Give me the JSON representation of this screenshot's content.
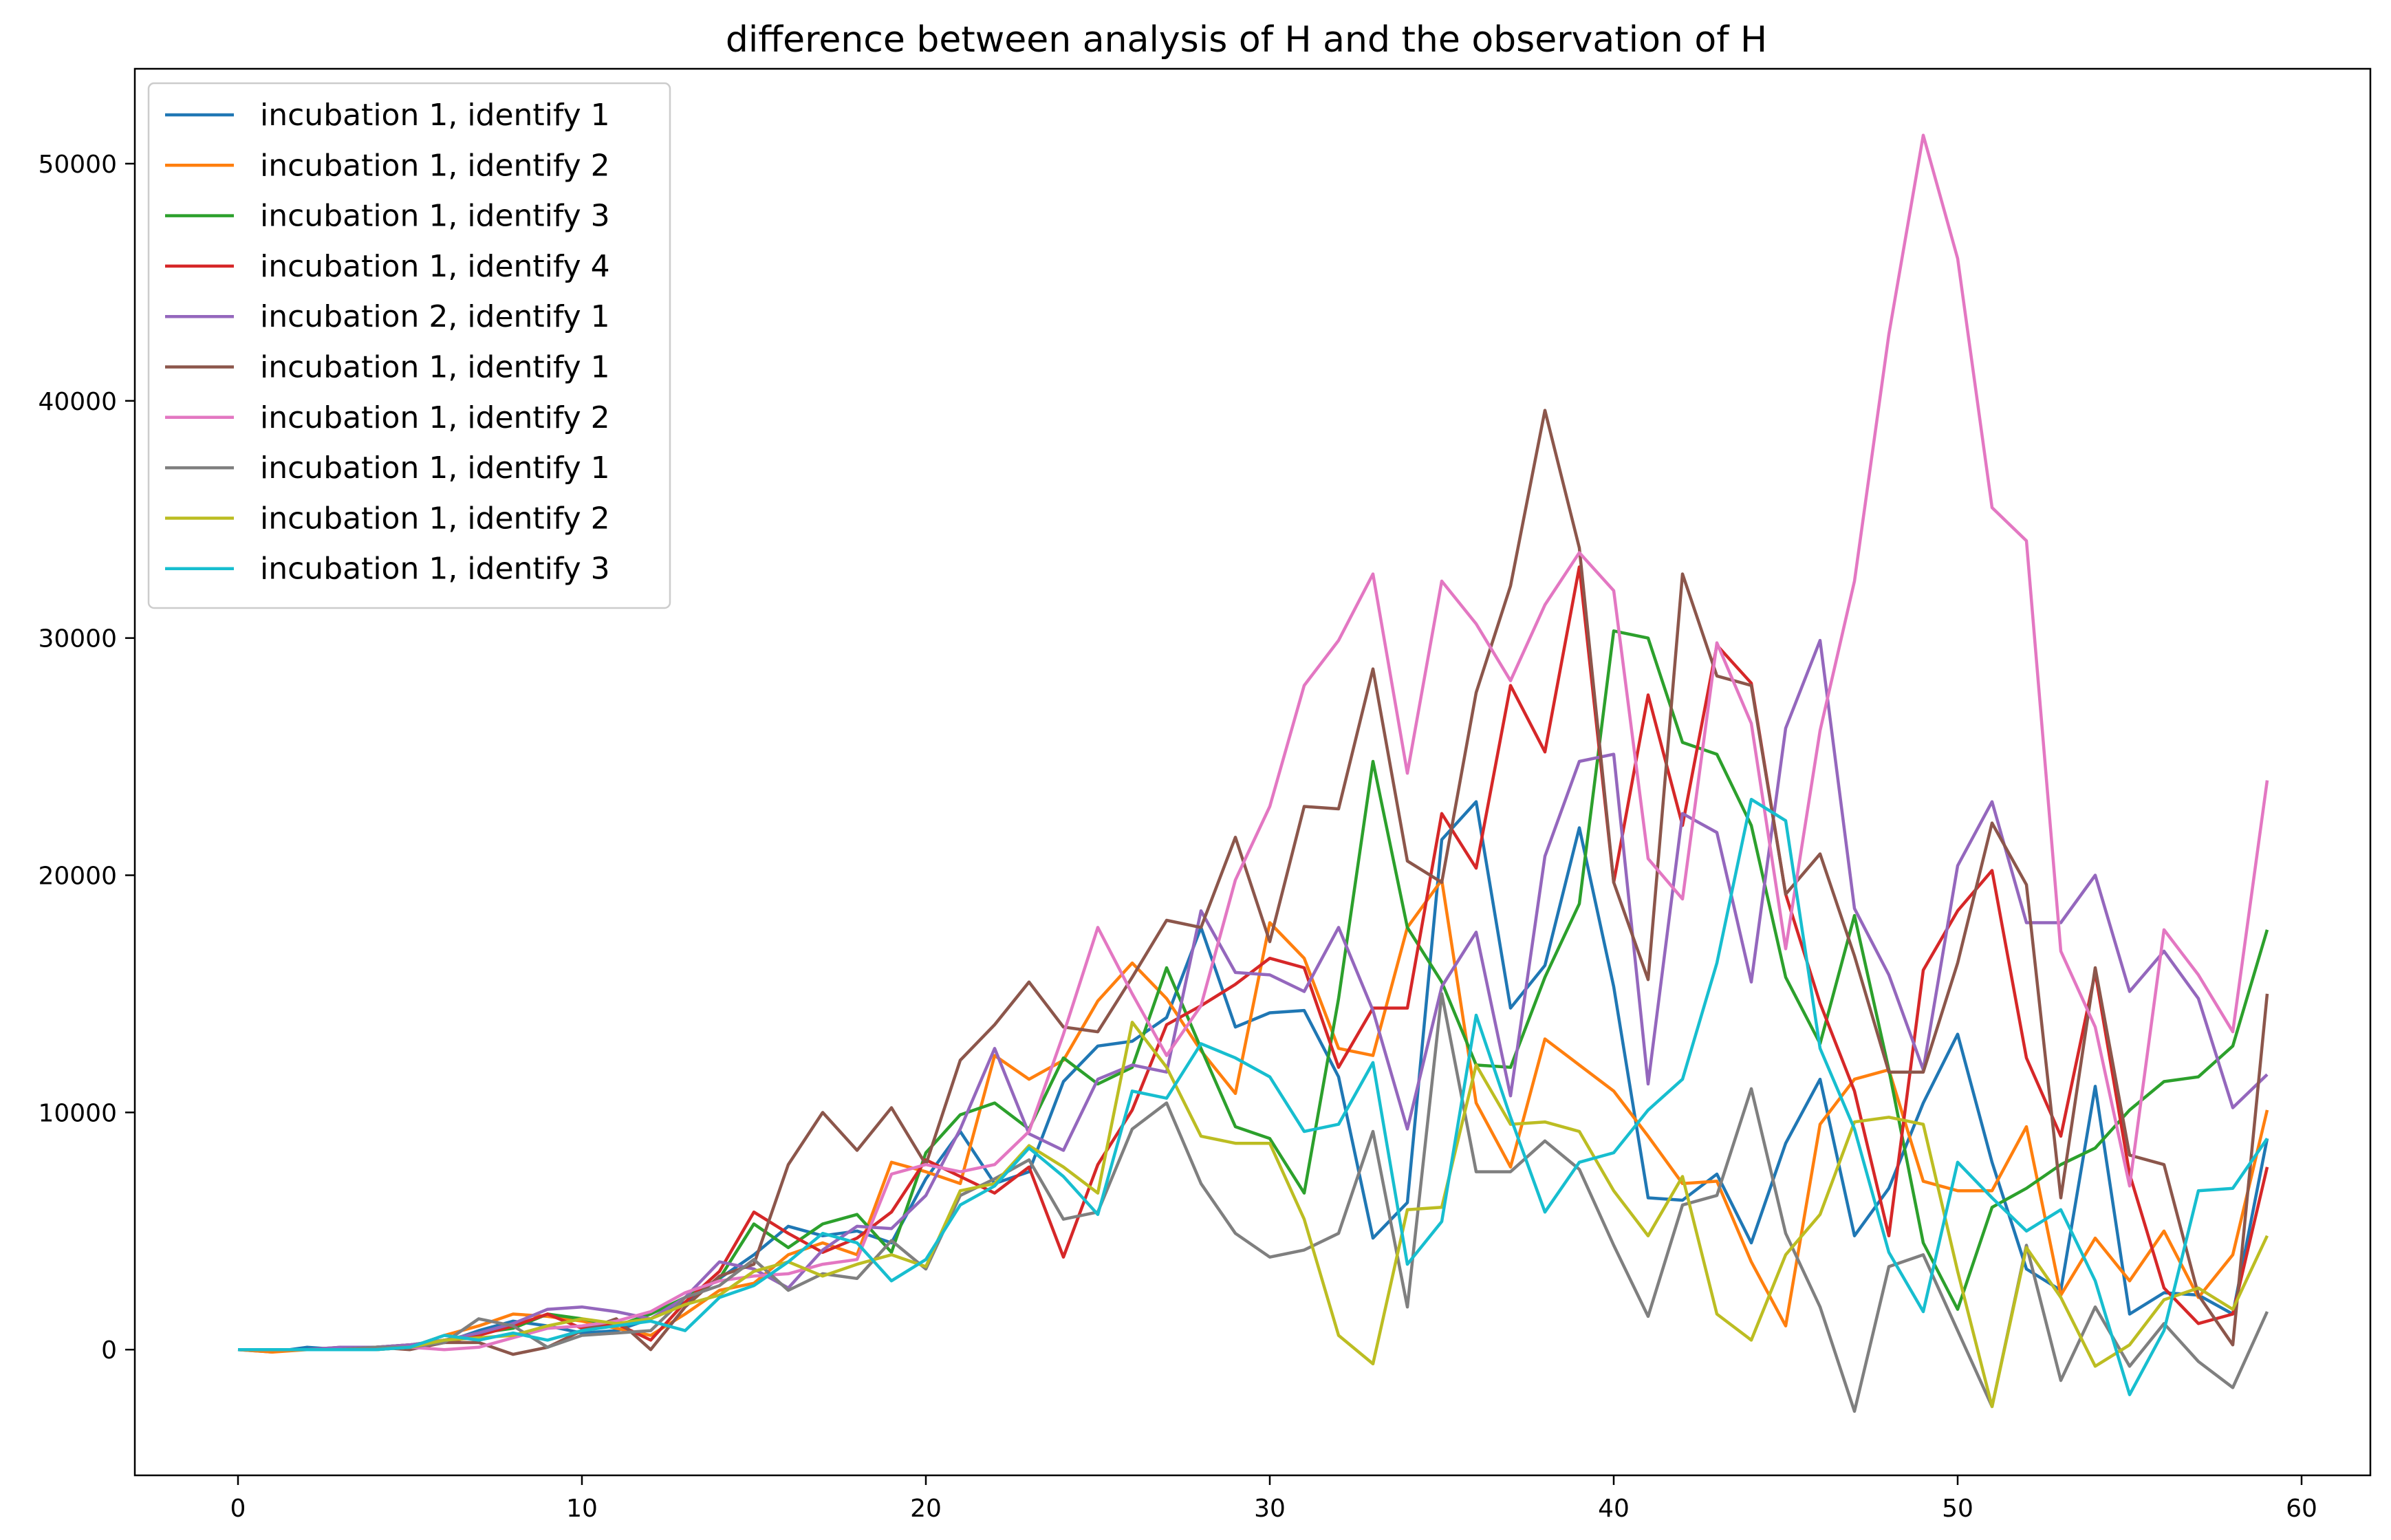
{
  "chart_data": {
    "type": "line",
    "title": "difference between analysis of H and the observation of H",
    "xlabel": "",
    "ylabel": "",
    "xlim": [
      -3,
      62
    ],
    "ylim": [
      -5300,
      54000
    ],
    "xticks": [
      0,
      10,
      20,
      30,
      40,
      50,
      60
    ],
    "yticks": [
      0,
      10000,
      20000,
      30000,
      40000,
      50000
    ],
    "grid": false,
    "legend_position": "upper-left",
    "x": [
      0,
      1,
      2,
      3,
      4,
      5,
      6,
      7,
      8,
      9,
      10,
      11,
      12,
      13,
      14,
      15,
      16,
      17,
      18,
      19,
      20,
      21,
      22,
      23,
      24,
      25,
      26,
      27,
      28,
      29,
      30,
      31,
      32,
      33,
      34,
      35,
      36,
      37,
      38,
      39,
      40,
      41,
      42,
      43,
      44,
      45,
      46,
      47,
      48,
      49,
      50,
      51,
      52,
      53,
      54,
      55,
      56,
      57,
      58,
      59
    ],
    "series": [
      {
        "name": "incubation 1, identify 1",
        "color": "#1f77b4",
        "values": [
          0,
          -100,
          100,
          0,
          0,
          100,
          300,
          800,
          1200,
          1000,
          700,
          800,
          1300,
          2000,
          3000,
          4000,
          5200,
          4800,
          5000,
          4500,
          7200,
          9200,
          7000,
          7500,
          11300,
          12800,
          13000,
          14000,
          17800,
          13600,
          14200,
          14300,
          11500,
          4700,
          6200,
          21500,
          23100,
          14400,
          16200,
          22000,
          15300,
          6400,
          6300,
          7400,
          4500,
          8700,
          11400,
          4800,
          6800,
          10400,
          13300,
          7900,
          3400,
          2500,
          11100,
          1500,
          2400,
          2300,
          1500,
          8900
        ]
      },
      {
        "name": "incubation 1, identify 2",
        "color": "#ff7f0e",
        "values": [
          0,
          -100,
          0,
          0,
          100,
          100,
          600,
          1000,
          1500,
          1400,
          1200,
          900,
          600,
          1500,
          2500,
          2800,
          4000,
          4500,
          4000,
          7900,
          7500,
          7000,
          12400,
          11400,
          12200,
          14700,
          16300,
          14800,
          12600,
          10800,
          18000,
          16500,
          12700,
          12400,
          17800,
          19800,
          10400,
          7700,
          13100,
          12000,
          10900,
          9000,
          7000,
          7100,
          3700,
          1000,
          9500,
          11400,
          11800,
          7100,
          6700,
          6700,
          9400,
          2300,
          4700,
          2900,
          5000,
          2200,
          4000,
          10100
        ]
      },
      {
        "name": "incubation 1, identify 3",
        "color": "#2ca02c",
        "values": [
          0,
          0,
          0,
          0,
          100,
          200,
          400,
          700,
          900,
          1500,
          1300,
          1000,
          1500,
          2200,
          3000,
          5300,
          4300,
          5300,
          5700,
          4100,
          8300,
          9900,
          10400,
          9300,
          12300,
          11200,
          11900,
          16100,
          12700,
          9400,
          8900,
          6600,
          14800,
          24800,
          17800,
          15500,
          12000,
          11900,
          15700,
          18800,
          30300,
          30000,
          25600,
          25100,
          22100,
          15700,
          12900,
          18300,
          11800,
          4500,
          1700,
          6000,
          6800,
          7800,
          8500,
          10100,
          11300,
          11500,
          12800,
          17700
        ]
      },
      {
        "name": "incubation 1, identify 4",
        "color": "#d62728",
        "values": [
          0,
          0,
          0,
          100,
          100,
          200,
          300,
          600,
          1000,
          1500,
          900,
          1100,
          400,
          2000,
          3300,
          5800,
          4900,
          4100,
          4700,
          5800,
          8000,
          7300,
          6600,
          7700,
          3900,
          7800,
          10100,
          13700,
          14500,
          15400,
          16500,
          16100,
          11900,
          14400,
          14400,
          22600,
          20300,
          28000,
          25200,
          33000,
          19700,
          27600,
          22100,
          29700,
          28100,
          19200,
          14600,
          10900,
          4800,
          16000,
          18500,
          20200,
          12300,
          9000,
          15900,
          7400,
          2600,
          1100,
          1500,
          7700
        ]
      },
      {
        "name": "incubation 2, identify 1",
        "color": "#9467bd",
        "values": [
          0,
          0,
          0,
          100,
          100,
          200,
          400,
          700,
          1100,
          1700,
          1800,
          1600,
          1300,
          2200,
          3700,
          3400,
          2600,
          4200,
          5200,
          5100,
          6500,
          9300,
          12700,
          9100,
          8400,
          11400,
          12000,
          11700,
          18500,
          15900,
          15800,
          15100,
          17800,
          14300,
          9300,
          15300,
          17600,
          10700,
          20800,
          24800,
          25100,
          11200,
          22600,
          21800,
          15500,
          26200,
          29900,
          18600,
          15800,
          11800,
          20400,
          23100,
          18000,
          18000,
          20000,
          15100,
          16800,
          14800,
          10200,
          11600
        ]
      },
      {
        "name": "incubation 1, identify 1",
        "color": "#8c564b",
        "values": [
          0,
          0,
          0,
          0,
          100,
          0,
          300,
          300,
          -200,
          100,
          800,
          1300,
          0,
          1800,
          3100,
          3600,
          7800,
          10000,
          8400,
          10200,
          7800,
          12200,
          13700,
          15500,
          13600,
          13400,
          15700,
          18100,
          17800,
          21600,
          17200,
          22900,
          22800,
          28700,
          20600,
          19700,
          27700,
          32200,
          39600,
          33800,
          19700,
          15600,
          32700,
          28400,
          28000,
          19200,
          20900,
          16600,
          11700,
          11700,
          16300,
          22200,
          19600,
          6400,
          16100,
          8200,
          7800,
          2300,
          200,
          15000
        ]
      },
      {
        "name": "incubation 1, identify 2",
        "color": "#e377c2",
        "values": [
          0,
          0,
          0,
          0,
          0,
          100,
          0,
          100,
          500,
          900,
          1000,
          1200,
          1600,
          2400,
          2900,
          3100,
          3200,
          3600,
          3800,
          7400,
          7800,
          7500,
          7800,
          9200,
          13300,
          17800,
          15000,
          12400,
          14500,
          19800,
          22900,
          28000,
          29900,
          32700,
          24300,
          32400,
          30600,
          28200,
          31400,
          33600,
          32000,
          20700,
          19000,
          29800,
          26400,
          16900,
          26100,
          32400,
          42800,
          51200,
          46000,
          35500,
          34100,
          16800,
          13600,
          6900,
          17700,
          15800,
          13400,
          24000
        ]
      },
      {
        "name": "incubation 1, identify 1",
        "color": "#7f7f7f",
        "values": [
          0,
          0,
          0,
          0,
          100,
          100,
          300,
          1300,
          1000,
          100,
          600,
          700,
          800,
          2200,
          2700,
          3800,
          2500,
          3200,
          3000,
          4600,
          3400,
          6500,
          7200,
          8000,
          5500,
          5800,
          9300,
          10400,
          7000,
          4900,
          3900,
          4200,
          4900,
          9200,
          1800,
          15000,
          7500,
          7500,
          8800,
          7600,
          4400,
          1400,
          6100,
          6500,
          11000,
          4900,
          1800,
          -2600,
          3500,
          4000,
          800,
          -2400,
          4400,
          -1300,
          1800,
          -700,
          1100,
          -500,
          -1600,
          1600
        ]
      },
      {
        "name": "incubation 1, identify 2",
        "color": "#bcbd22",
        "values": [
          0,
          0,
          0,
          0,
          0,
          100,
          400,
          500,
          600,
          1000,
          1300,
          1100,
          1300,
          1900,
          2300,
          3300,
          3700,
          3100,
          3600,
          4000,
          3500,
          6700,
          7000,
          8600,
          7700,
          6600,
          13800,
          11900,
          9000,
          8700,
          8700,
          5500,
          600,
          -600,
          5900,
          6000,
          12000,
          9500,
          9600,
          9200,
          6700,
          4800,
          7300,
          1500,
          400,
          4000,
          5700,
          9600,
          9800,
          9500,
          3300,
          -2400,
          4300,
          2200,
          -700,
          200,
          2100,
          2600,
          1700,
          4800
        ]
      },
      {
        "name": "incubation 1, identify 3",
        "color": "#17becf",
        "values": [
          0,
          0,
          0,
          0,
          0,
          100,
          600,
          400,
          700,
          400,
          800,
          1000,
          1200,
          800,
          2200,
          2700,
          3700,
          4900,
          4500,
          2900,
          3800,
          6100,
          6900,
          8500,
          7300,
          5700,
          10900,
          10600,
          12900,
          12300,
          11500,
          9200,
          9500,
          12100,
          3600,
          5400,
          14100,
          9800,
          5800,
          7900,
          8300,
          10100,
          11400,
          16300,
          23200,
          22300,
          12700,
          9300,
          4100,
          1600,
          7900,
          6400,
          5000,
          5900,
          2900,
          -1900,
          800,
          6700,
          6800,
          8900
        ]
      }
    ]
  }
}
